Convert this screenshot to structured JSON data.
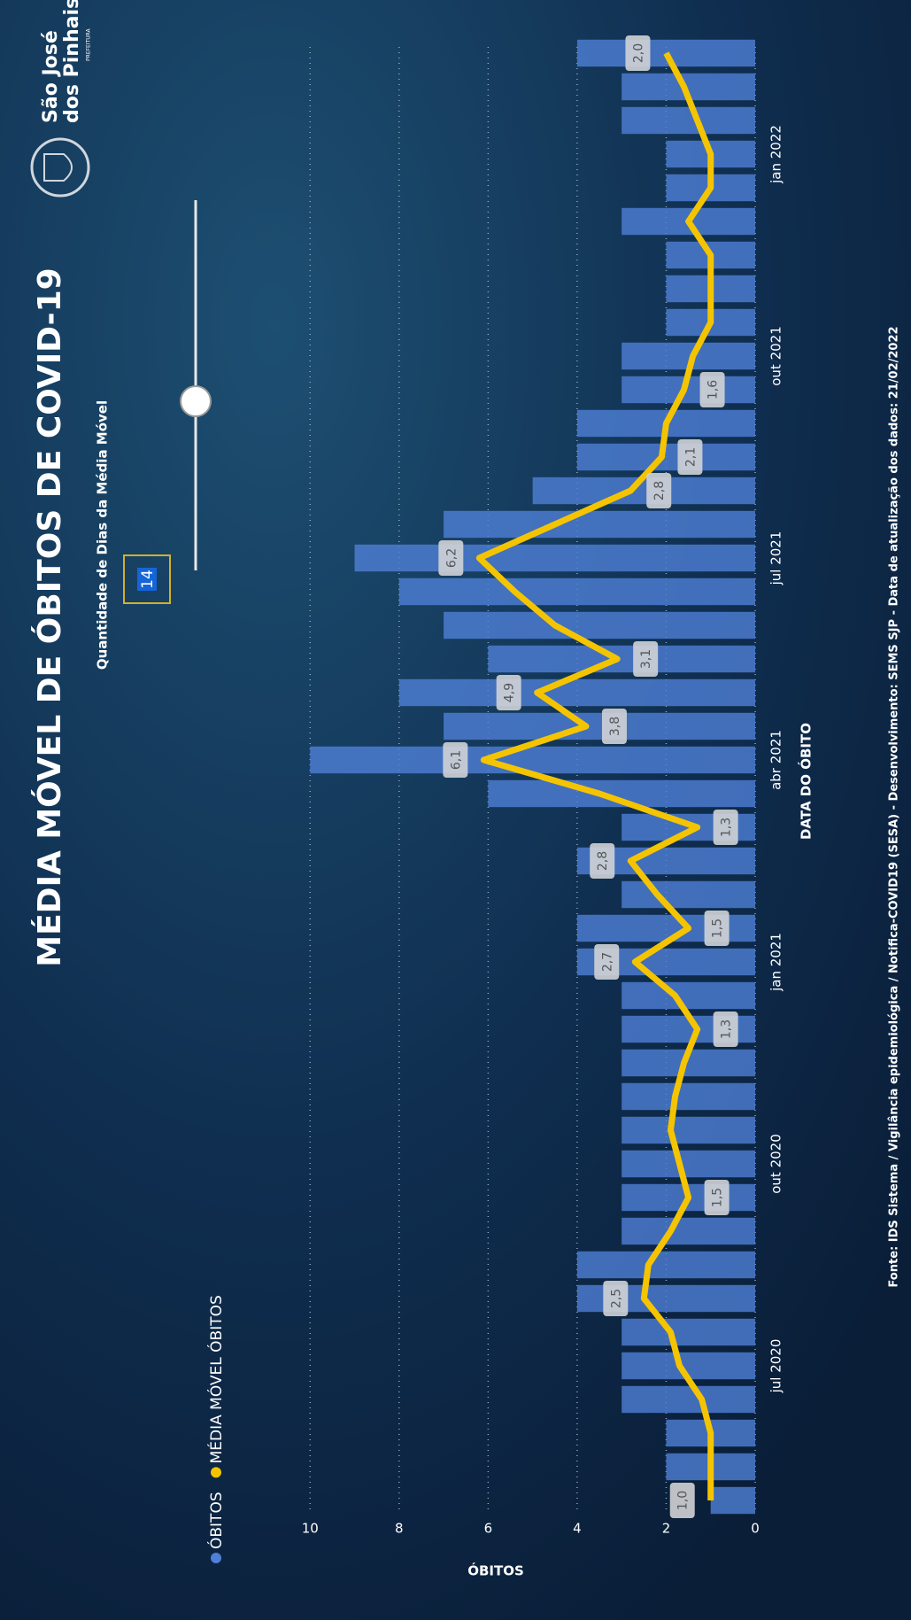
{
  "chart_data": {
    "type": "bar-line",
    "title": "MÉDIA MÓVEL DE ÓBITOS DE COVID-19",
    "x_label": "DATA DO ÓBITO",
    "y_label": "ÓBITOS",
    "categories": [
      null,
      null,
      null,
      null,
      "jul 2020",
      null,
      null,
      null,
      null,
      null,
      "out 2020",
      null,
      null,
      null,
      null,
      null,
      "jan 2021",
      null,
      null,
      null,
      null,
      null,
      "abr 2021",
      null,
      null,
      null,
      null,
      null,
      "jul 2021",
      null,
      null,
      null,
      null,
      null,
      "out 2021",
      null,
      null,
      null,
      null,
      null,
      "jan 2022",
      null,
      null,
      null
    ],
    "series": [
      {
        "name": "ÓBITOS",
        "color": "#4f7fd6",
        "kind": "bar",
        "values": [
          1,
          2,
          2,
          3,
          3,
          3,
          4,
          4,
          3,
          3,
          3,
          3,
          3,
          3,
          3,
          3,
          4,
          4,
          3,
          4,
          3,
          6,
          10,
          7,
          8,
          6,
          7,
          8,
          9,
          7,
          5,
          4,
          4,
          3,
          3,
          2,
          2,
          2,
          3,
          2,
          2,
          3,
          3,
          4
        ]
      },
      {
        "name": "MÉDIA MÓVEL ÓBITOS",
        "color": "#f5c400",
        "kind": "line",
        "values": [
          1.0,
          1.0,
          1.0,
          1.2,
          1.7,
          1.9,
          2.5,
          2.4,
          1.9,
          1.5,
          1.7,
          1.9,
          1.8,
          1.6,
          1.3,
          1.8,
          2.7,
          1.5,
          2.2,
          2.8,
          1.3,
          3.5,
          6.1,
          3.8,
          4.9,
          3.1,
          4.5,
          5.4,
          6.2,
          4.5,
          2.8,
          2.1,
          2.0,
          1.6,
          1.4,
          1.0,
          1.0,
          1.0,
          1.5,
          1.0,
          1.0,
          1.3,
          1.6,
          2.0
        ],
        "value_labels": [
          "1,0",
          null,
          null,
          null,
          null,
          null,
          "2,5",
          null,
          null,
          "1,5",
          null,
          null,
          null,
          null,
          "1,3",
          null,
          "2,7",
          "1,5",
          null,
          "2,8",
          "1,3",
          null,
          "6,1",
          "3,8",
          "4,9",
          "3,1",
          null,
          null,
          "6,2",
          null,
          "2,8",
          "2,1",
          null,
          "1,6",
          null,
          null,
          null,
          null,
          null,
          null,
          null,
          null,
          null,
          "2,0"
        ]
      }
    ],
    "ylim": [
      0,
      11
    ],
    "yticks": [
      0,
      2,
      4,
      6,
      8,
      10
    ],
    "grid": true
  },
  "slider": {
    "label": "Quantidade de Dias da Média Móvel",
    "value": "14"
  },
  "logo": {
    "line1": "São José",
    "line2": "dos Pinhais",
    "line3": "PREFEITURA"
  },
  "footer": "Fonte: IDS Sistema / Vigilância epidemiológica / Notifica-COVID19 (SESA) - Desenvolvimento: SEMS SJP - Data de atualização dos dados: 21/02/2022"
}
